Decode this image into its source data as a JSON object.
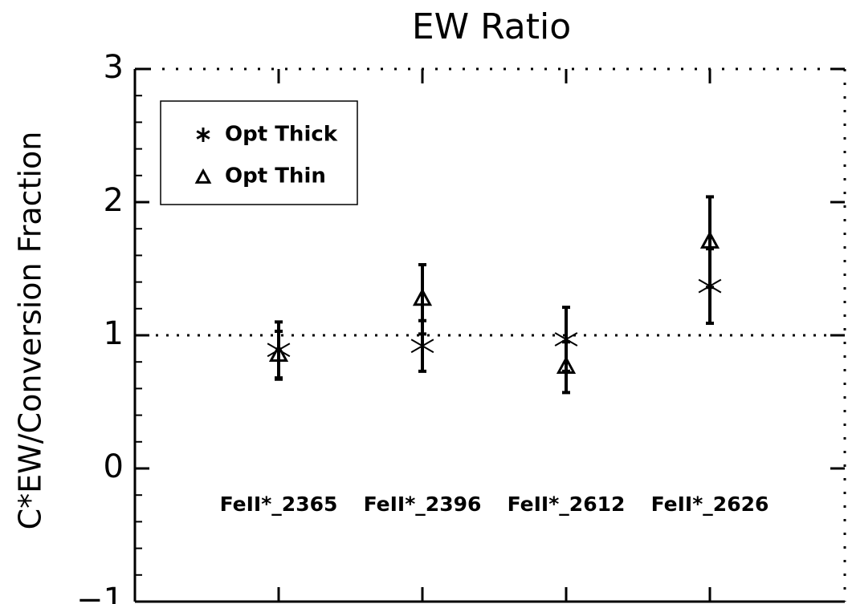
{
  "chart_data": {
    "type": "errorbar",
    "title": "EW Ratio",
    "y_label": "C*EW/Conversion Fraction",
    "categories": [
      "FeII*_2365",
      "FeII*_2396",
      "FeII*_2612",
      "FeII*_2626"
    ],
    "series": [
      {
        "name": "Opt Thick",
        "marker": "asterisk",
        "color": "#000000",
        "values": [
          0.89,
          0.92,
          0.97,
          1.37
        ],
        "errors": [
          0.21,
          0.19,
          0.24,
          0.28
        ]
      },
      {
        "name": "Opt Thin",
        "marker": "triangle",
        "color": "#000000",
        "values": [
          0.85,
          1.27,
          0.76,
          1.7
        ],
        "errors": [
          0.18,
          0.26,
          0.19,
          0.34
        ]
      }
    ],
    "ylim": [
      -1,
      3
    ],
    "yticks": [
      {
        "value": -1,
        "label": "−1"
      },
      0,
      1,
      2,
      3
    ],
    "reference_line": 1,
    "legend": "top-left"
  }
}
